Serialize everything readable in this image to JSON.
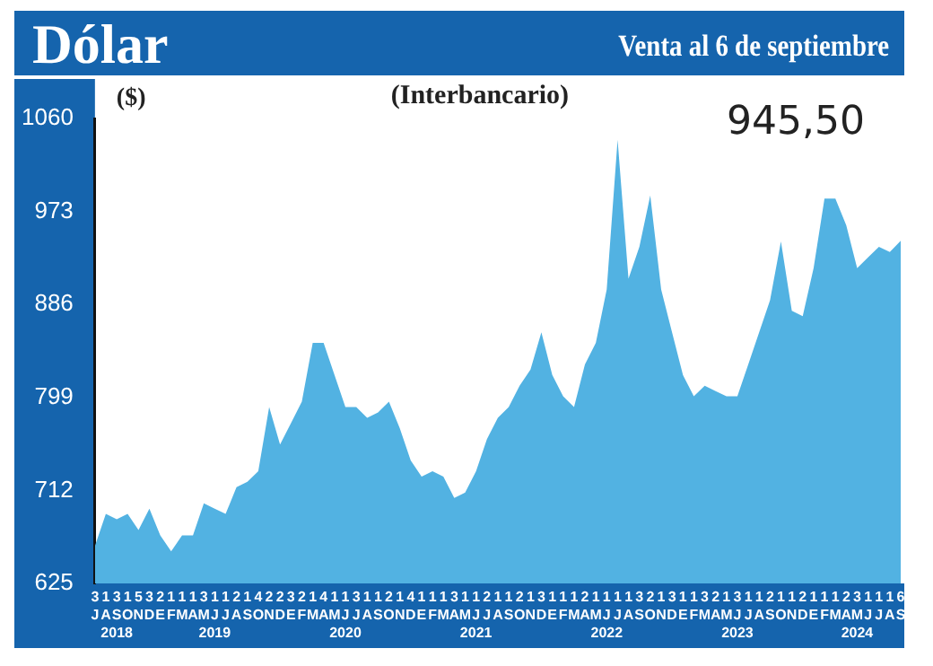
{
  "chart_data": {
    "type": "area",
    "title": "Dólar",
    "subtitle": "Venta al 6 de septiembre",
    "ylabel": "($)",
    "annotations": [
      "(Interbancario)",
      "945,50"
    ],
    "categories": [
      "3\nJ",
      "1\nA",
      "3\nS\n2018",
      "1\nO",
      "5\nN",
      "3\nD",
      "2\nE",
      "1\nF",
      "1\nM",
      "1\nA",
      "3\nM",
      "1\nJ\n2019",
      "1\nJ",
      "2\nA",
      "1\nS",
      "4\nO",
      "2\nN",
      "2\nD",
      "3\nE",
      "2\nF",
      "1\nM",
      "4\nA",
      "1\nM",
      "1\nJ\n2020",
      "3\nJ",
      "1\nA",
      "1\nS",
      "2\nO",
      "1\nN",
      "4\nD",
      "1\nE",
      "1\nF",
      "1\nM",
      "3\nA",
      "1\nM",
      "1\nJ\n2021",
      "2\nJ",
      "1\nA",
      "1\nS",
      "2\nO",
      "1\nN",
      "3\nD",
      "1\nE",
      "1\nF",
      "1\nM",
      "2\nA",
      "1\nM",
      "1\nJ\n2022",
      "1\nJ",
      "1\nA",
      "3\nS",
      "2\nO",
      "1\nN",
      "3\nD",
      "1\nE",
      "1\nF",
      "3\nM",
      "2\nA",
      "1\nM",
      "3\nJ\n2023",
      "1\nJ",
      "1\nA",
      "2\nS",
      "1\nO",
      "1\nN",
      "2\nD",
      "1\nE",
      "1\nF",
      "1\nM",
      "2\nA",
      "3\nM\n2024",
      "1\nJ",
      "1\nJ",
      "1\nA",
      "6\nS"
    ],
    "series": [
      {
        "color": "#52b2e2",
        "values": [
          660,
          690,
          685,
          690,
          675,
          695,
          670,
          655,
          670,
          670,
          700,
          695,
          690,
          715,
          720,
          730,
          790,
          755,
          775,
          795,
          850,
          850,
          820,
          790,
          790,
          780,
          785,
          795,
          770,
          740,
          725,
          730,
          725,
          705,
          710,
          730,
          760,
          780,
          790,
          810,
          825,
          860,
          820,
          800,
          790,
          830,
          850,
          900,
          1040,
          910,
          940,
          988,
          900,
          860,
          820,
          800,
          810,
          805,
          800,
          800,
          830,
          860,
          890,
          945,
          880,
          875,
          920,
          985,
          985,
          960,
          920,
          930,
          940,
          935,
          945.5
        ]
      }
    ],
    "ylim": [
      625,
      1060
    ],
    "yticks": [
      625,
      712,
      799,
      886,
      973,
      1060
    ],
    "grid": false,
    "legend": false
  }
}
